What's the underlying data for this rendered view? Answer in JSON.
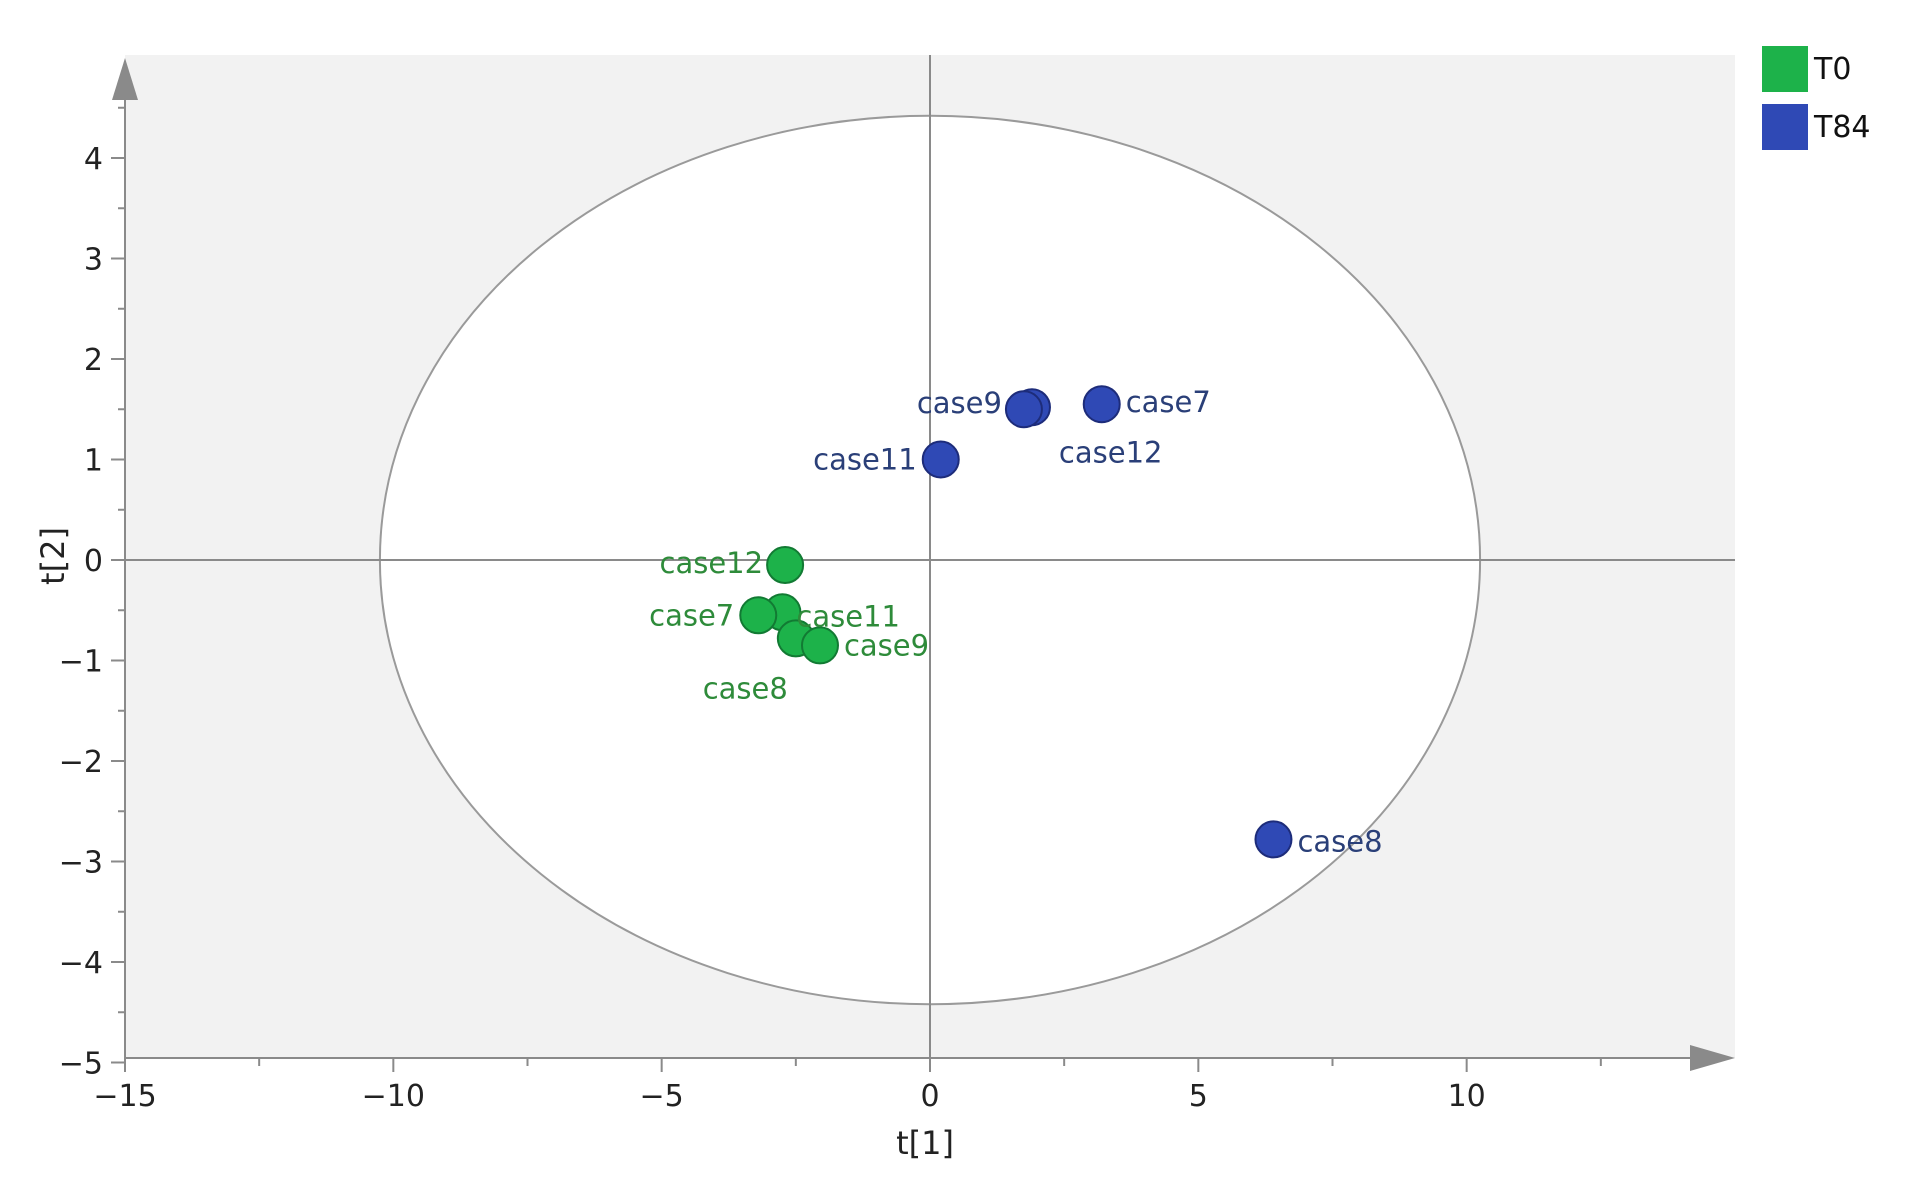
{
  "chart_data": {
    "type": "scatter",
    "xlabel": "t[1]",
    "ylabel": "t[2]",
    "xlim": [
      -15,
      15
    ],
    "ylim": [
      -5,
      5
    ],
    "xticks": [
      -15,
      -10,
      -5,
      0,
      5,
      10
    ],
    "yticks": [
      4,
      3,
      2,
      1,
      0,
      -1,
      -2,
      -3,
      -4,
      -5
    ],
    "xtick_labels": [
      "−15",
      "−10",
      "−5",
      "0",
      "5",
      "10"
    ],
    "ytick_labels": [
      "4",
      "3",
      "2",
      "1",
      "0",
      "−1",
      "−2",
      "−3",
      "−4",
      "−5"
    ],
    "ellipse": {
      "rx": 10.25,
      "ry": 4.42
    },
    "grid": false,
    "legend_position": "top-right",
    "series": [
      {
        "name": "T0",
        "color": "#1db24a",
        "label_color": "#2e8b3a",
        "points": [
          {
            "label": "case12",
            "x": -2.7,
            "y": -0.05
          },
          {
            "label": "case11",
            "x": -2.75,
            "y": -0.52
          },
          {
            "label": "case7",
            "x": -3.2,
            "y": -0.55
          },
          {
            "label": "case8",
            "x": -2.5,
            "y": -0.78
          },
          {
            "label": "case9",
            "x": -2.05,
            "y": -0.85
          }
        ]
      },
      {
        "name": "T84",
        "color": "#2f49b5",
        "label_color": "#2a3f78",
        "points": [
          {
            "label": "case9",
            "x": 1.9,
            "y": 1.52
          },
          {
            "label": "case12",
            "x": 1.75,
            "y": 1.5
          },
          {
            "label": "case7",
            "x": 3.2,
            "y": 1.55
          },
          {
            "label": "case11",
            "x": 0.2,
            "y": 1.0
          },
          {
            "label": "case8",
            "x": 6.4,
            "y": -2.78
          }
        ]
      }
    ]
  }
}
